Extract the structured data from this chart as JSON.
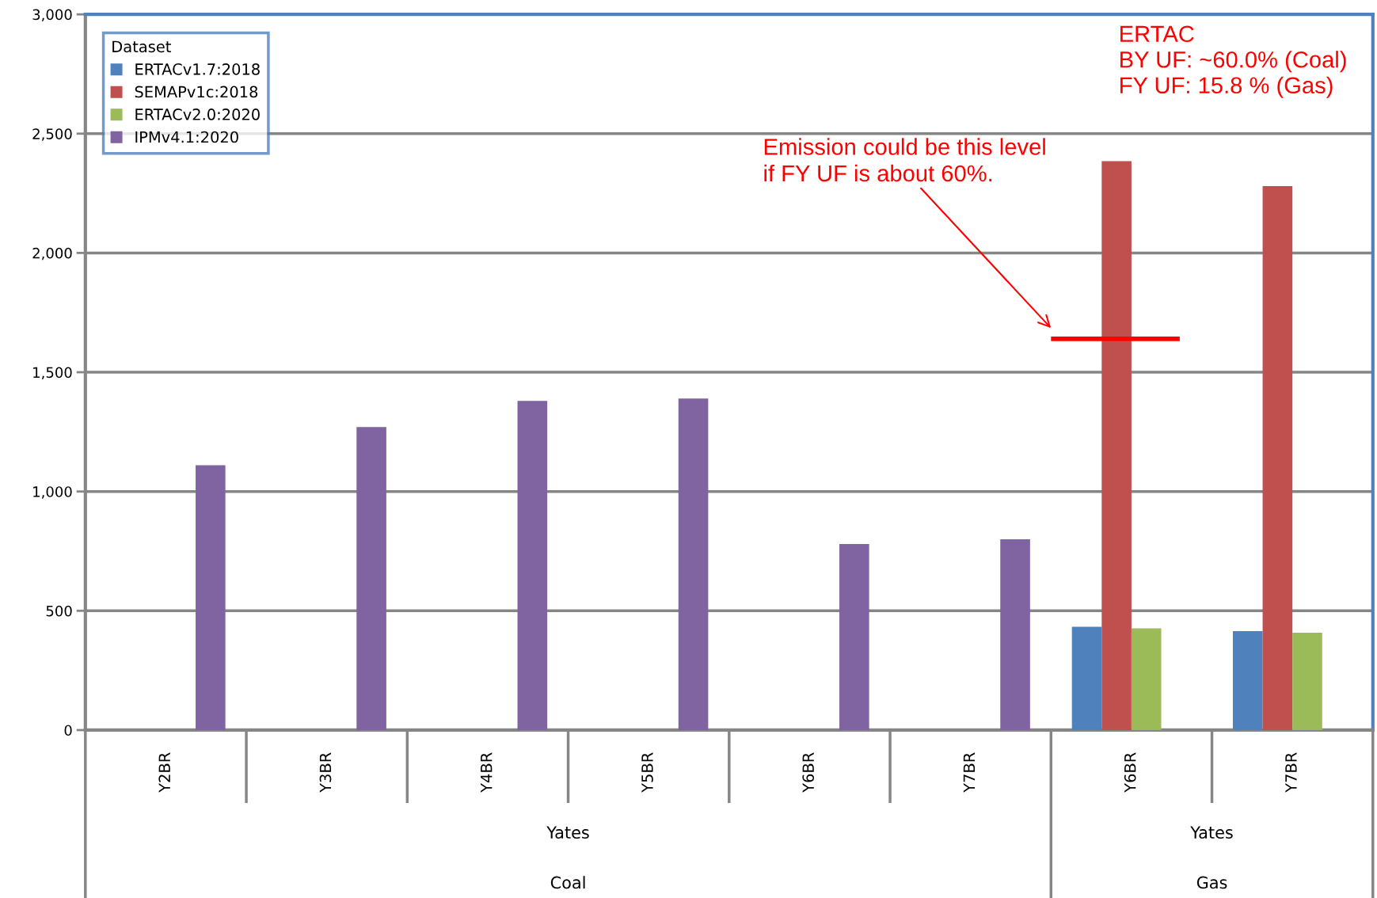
{
  "chart_data": {
    "type": "bar",
    "categories": [
      "Y2BR",
      "Y3BR",
      "Y4BR",
      "Y5BR",
      "Y6BR",
      "Y7BR",
      "Y6BR",
      "Y7BR"
    ],
    "series": [
      {
        "name": "ERTACv1.7:2018",
        "color": "#4f81bd",
        "values": [
          null,
          null,
          null,
          null,
          null,
          null,
          433,
          415
        ]
      },
      {
        "name": "SEMAPv1c:2018",
        "color": "#c0504d",
        "values": [
          null,
          null,
          null,
          null,
          null,
          null,
          2385,
          2280
        ]
      },
      {
        "name": "ERTACv2.0:2020",
        "color": "#9bbb59",
        "values": [
          null,
          null,
          null,
          null,
          null,
          null,
          426,
          408
        ]
      },
      {
        "name": "IPMv4.1:2020",
        "color": "#8064a2",
        "values": [
          1110,
          1270,
          1380,
          1390,
          780,
          800,
          null,
          null
        ]
      }
    ],
    "legend_title": "Dataset",
    "legend": "top left",
    "ylim": [
      0,
      3000
    ],
    "yticks": [
      0,
      500,
      {
        "value": 1000,
        "label": "1,000"
      },
      {
        "value": 1500,
        "label": "1,500"
      },
      {
        "value": 2000,
        "label": "2,000"
      },
      {
        "value": 2500,
        "label": "2,500"
      },
      {
        "value": 3000,
        "label": "3,000"
      }
    ],
    "grid": "y",
    "ref_lines": [
      {
        "axis": "y",
        "value": 1640,
        "label": "Emission could be this level\nif FY UF is about 60%.",
        "color": "#ff0000"
      }
    ],
    "annotations": [
      "ERTAC\nBY UF: ~60.0% (Coal)\nFY UF: 15.8 % (Gas)",
      "Yates",
      "Coal",
      "Yates",
      "Gas"
    ]
  }
}
